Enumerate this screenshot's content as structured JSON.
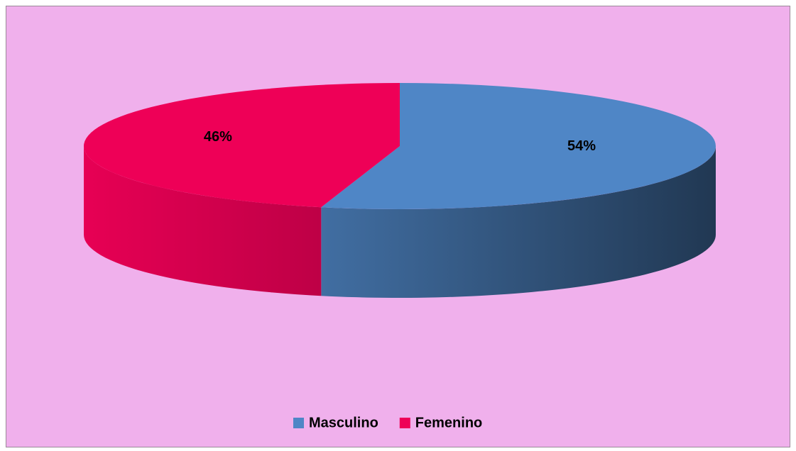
{
  "chart_data": {
    "type": "pie",
    "categories": [
      "Masculino",
      "Femenino"
    ],
    "values": [
      54,
      46
    ],
    "value_labels": [
      "54%",
      "46%"
    ],
    "colors": [
      "#4f86c6",
      "#ee0057"
    ],
    "legend": "bottom"
  }
}
